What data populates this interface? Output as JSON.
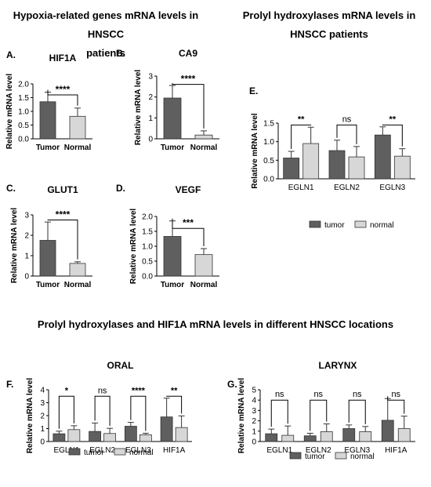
{
  "headings": {
    "left_line1": "Hypoxia-related genes mRNA levels in HNSCC",
    "left_line2": "patients",
    "right_line1": "Prolyl hydroxylases mRNA levels in",
    "right_line2": "HNSCC patients",
    "bottom": "Prolyl hydroxylases and HIF1A mRNA levels in different HNSCC locations"
  },
  "colors": {
    "tumor": "#5f5f5f",
    "normal": "#d7d7d7"
  },
  "chart_data": [
    {
      "id": "A",
      "panel_label": "A.",
      "type": "bar",
      "title": "HIF1A",
      "ylabel": "Relative mRNA level",
      "ylim": [
        0,
        2.0
      ],
      "yticks": [
        "0.0",
        "0.5",
        "1.0",
        "1.5",
        "2.0"
      ],
      "categories": [
        "Tumor",
        "Normal"
      ],
      "values": [
        1.35,
        0.82
      ],
      "errors": [
        0.35,
        0.3
      ],
      "significance": [
        {
          "from": 0,
          "to": 1,
          "label": "****",
          "y": 1.6
        }
      ]
    },
    {
      "id": "B",
      "panel_label": "B.",
      "type": "bar",
      "title": "CA9",
      "ylabel": "Relative mRNA level",
      "ylim": [
        0,
        3
      ],
      "yticks": [
        "0",
        "1",
        "2",
        "3"
      ],
      "categories": [
        "Tumor",
        "Normal"
      ],
      "values": [
        1.95,
        0.18
      ],
      "errors": [
        0.6,
        0.2
      ],
      "significance": [
        {
          "from": 0,
          "to": 1,
          "label": "****",
          "y": 2.6
        }
      ]
    },
    {
      "id": "C",
      "panel_label": "C.",
      "type": "bar",
      "title": "GLUT1",
      "ylabel": "Relative mRNA level",
      "ylim": [
        0,
        3
      ],
      "yticks": [
        "0",
        "1",
        "2",
        "3"
      ],
      "categories": [
        "Tumor",
        "Normal"
      ],
      "values": [
        1.75,
        0.62
      ],
      "errors": [
        0.9,
        0.08
      ],
      "significance": [
        {
          "from": 0,
          "to": 1,
          "label": "****",
          "y": 2.75
        }
      ]
    },
    {
      "id": "D",
      "panel_label": "D.",
      "type": "bar",
      "title": "VEGF",
      "ylabel": "Relative mRNA level",
      "ylim": [
        0,
        2.0
      ],
      "yticks": [
        "0.0",
        "0.5",
        "1.0",
        "1.5",
        "2.0"
      ],
      "categories": [
        "Tumor",
        "Normal"
      ],
      "values": [
        1.33,
        0.72
      ],
      "errors": [
        0.52,
        0.2
      ],
      "significance": [
        {
          "from": 0,
          "to": 1,
          "label": "***",
          "y": 1.6
        }
      ]
    },
    {
      "id": "E",
      "panel_label": "E.",
      "type": "bar",
      "title": "",
      "ylabel": "Relative mRNA level",
      "ylim": [
        0,
        1.5
      ],
      "yticks": [
        "0.0",
        "0.5",
        "1.0",
        "1.5"
      ],
      "categories": [
        "EGLN1",
        "EGLN2",
        "EGLN3"
      ],
      "series": [
        {
          "name": "tumor",
          "values": [
            0.56,
            0.76,
            1.18
          ],
          "errors": [
            0.18,
            0.28,
            0.22
          ]
        },
        {
          "name": "normal",
          "values": [
            0.95,
            0.59,
            0.61
          ],
          "errors": [
            0.44,
            0.28,
            0.2
          ]
        }
      ],
      "significance": [
        {
          "group": 0,
          "label": "**",
          "y": 1.45
        },
        {
          "group": 1,
          "label": "ns",
          "y": 1.45
        },
        {
          "group": 2,
          "label": "**",
          "y": 1.45
        }
      ],
      "legend": [
        "tumor",
        "normal"
      ]
    },
    {
      "id": "F",
      "panel_label": "F.",
      "type": "bar",
      "title": "ORAL",
      "ylabel": "Relative mRNA level",
      "ylim": [
        0,
        4
      ],
      "yticks": [
        "0",
        "1",
        "2",
        "3",
        "4"
      ],
      "categories": [
        "EGLN1",
        "EGLN2",
        "EGLN3",
        "HIF1A"
      ],
      "series": [
        {
          "name": "tumor",
          "values": [
            0.6,
            0.78,
            1.18,
            1.9
          ],
          "errors": [
            0.2,
            0.65,
            0.3,
            1.45
          ]
        },
        {
          "name": "normal",
          "values": [
            0.92,
            0.62,
            0.52,
            1.08
          ],
          "errors": [
            0.3,
            0.4,
            0.12,
            0.9
          ]
        }
      ],
      "significance": [
        {
          "group": 0,
          "label": "*",
          "y": 3.5
        },
        {
          "group": 1,
          "label": "ns",
          "y": 3.5
        },
        {
          "group": 2,
          "label": "****",
          "y": 3.5
        },
        {
          "group": 3,
          "label": "**",
          "y": 3.5
        }
      ],
      "legend": [
        "tumor",
        "normal"
      ]
    },
    {
      "id": "G",
      "panel_label": "G.",
      "type": "bar",
      "title": "LARYNX",
      "ylabel": "Relative mRNA level",
      "ylim": [
        0,
        5
      ],
      "yticks": [
        "0",
        "1",
        "2",
        "3",
        "4",
        "5"
      ],
      "categories": [
        "EGLN1",
        "EGLN2",
        "EGLN3",
        "HIF1A"
      ],
      "series": [
        {
          "name": "tumor",
          "values": [
            0.75,
            0.55,
            1.25,
            2.05
          ],
          "errors": [
            0.45,
            0.25,
            0.35,
            2.1
          ]
        },
        {
          "name": "normal",
          "values": [
            0.6,
            0.95,
            0.95,
            1.25
          ],
          "errors": [
            0.9,
            0.75,
            0.5,
            1.2
          ]
        }
      ],
      "significance": [
        {
          "group": 0,
          "label": "ns",
          "y": 4.0
        },
        {
          "group": 1,
          "label": "ns",
          "y": 4.0
        },
        {
          "group": 2,
          "label": "ns",
          "y": 4.0
        },
        {
          "group": 3,
          "label": "ns",
          "y": 4.0
        }
      ],
      "legend": [
        "tumor",
        "normal"
      ]
    }
  ]
}
